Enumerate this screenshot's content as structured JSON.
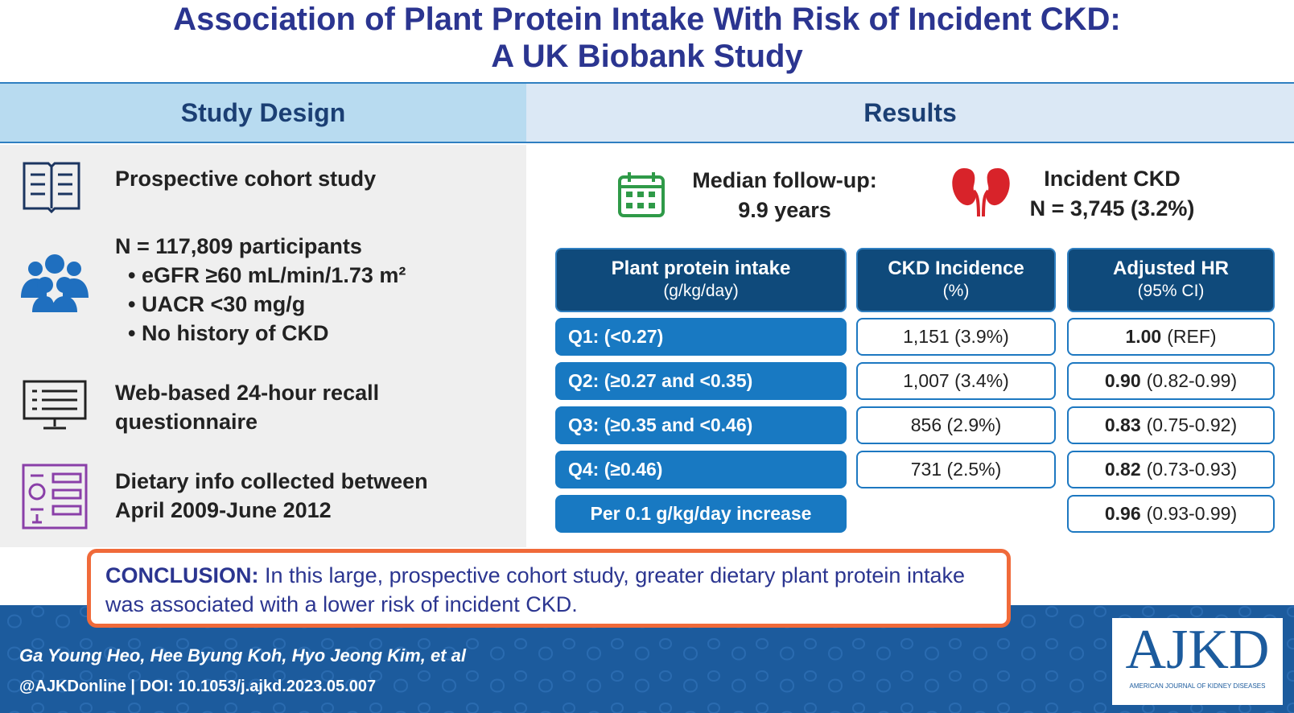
{
  "header": {
    "title_line1": "Association of Plant Protein Intake With Risk of Incident CKD:",
    "title_line2": "A UK Biobank Study"
  },
  "study_design": {
    "heading": "Study Design",
    "item1": "Prospective cohort study",
    "item2": {
      "main": "N = 117,809 participants",
      "bullets": [
        "eGFR ≥60 mL/min/1.73 m²",
        "UACR <30 mg/g",
        "No history of CKD"
      ]
    },
    "item3": [
      "Web-based 24-hour recall",
      "questionnaire"
    ],
    "item4": [
      "Dietary info collected between",
      "April 2009-June 2012"
    ]
  },
  "results": {
    "heading": "Results",
    "follow_up": [
      "Median follow-up:",
      "9.9 years"
    ],
    "incident": [
      "Incident CKD",
      "N = 3,745 (3.2%)"
    ],
    "table": {
      "headers": [
        [
          "Plant protein intake",
          "(g/kg/day)"
        ],
        [
          "CKD Incidence",
          "(%)"
        ],
        [
          "Adjusted HR",
          "(95% CI)"
        ]
      ],
      "rows": [
        {
          "label": "Q1: (<0.27)",
          "incidence": "1,151 (3.9%)",
          "hr": "1.00",
          "ci": "(REF)"
        },
        {
          "label": "Q2: (≥0.27 and <0.35)",
          "incidence": "1,007 (3.4%)",
          "hr": "0.90",
          "ci": "(0.82-0.99)"
        },
        {
          "label": "Q3: (≥0.35 and <0.46)",
          "incidence": "856 (2.9%)",
          "hr": "0.83",
          "ci": "(0.75-0.92)"
        },
        {
          "label": "Q4: (≥0.46)",
          "incidence": "731 (2.5%)",
          "hr": "0.82",
          "ci": "(0.73-0.93)"
        },
        {
          "label": "Per 0.1 g/kg/day increase",
          "hr": "0.96",
          "ci": "(0.93-0.99)"
        }
      ]
    }
  },
  "conclusion": {
    "label": "CONCLUSION:",
    "text": "In this large, prospective cohort study, greater dietary plant protein intake was associated with a lower risk of incident CKD."
  },
  "footer": {
    "authors": "Ga Young Heo, Hee Byung Koh, Hyo Jeong Kim, et al",
    "doi": "@AJKDonline | DOI: 10.1053/j.ajkd.2023.05.007",
    "logo": "AJKD",
    "logo_sub": "AMERICAN JOURNAL OF KIDNEY DISEASES"
  }
}
